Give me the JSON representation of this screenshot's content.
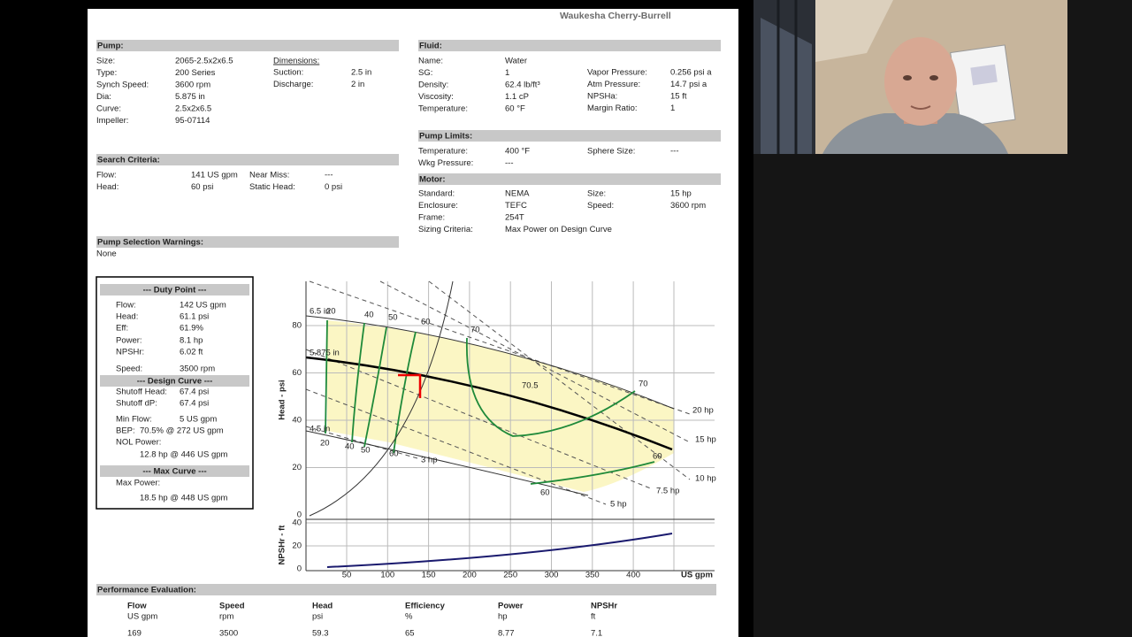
{
  "brand": "Waukesha Cherry-Burrell",
  "pump": {
    "title": "Pump:",
    "fields": [
      {
        "label": "Size:",
        "value": "2065-2.5x2x6.5"
      },
      {
        "label": "Type:",
        "value": "200 Series"
      },
      {
        "label": "Synch Speed:",
        "value": "3600 rpm"
      },
      {
        "label": "Dia:",
        "value": "5.875 in"
      },
      {
        "label": "Curve:",
        "value": "2.5x2x6.5"
      },
      {
        "label": "Impeller:",
        "value": "95-07114"
      }
    ],
    "dimensions": {
      "title": "Dimensions:",
      "fields": [
        {
          "label": "Suction:",
          "value": "2.5 in"
        },
        {
          "label": "Discharge:",
          "value": "2 in"
        }
      ]
    }
  },
  "search_criteria": {
    "title": "Search Criteria:",
    "fields": [
      {
        "label": "Flow:",
        "value": "141 US gpm"
      },
      {
        "label": "Head:",
        "value": "60 psi"
      }
    ],
    "fields_right": [
      {
        "label": "Near Miss:",
        "value": "---"
      },
      {
        "label": "Static Head:",
        "value": "0 psi"
      }
    ]
  },
  "warnings": {
    "title": "Pump Selection Warnings:",
    "text": "None"
  },
  "fluid": {
    "title": "Fluid:",
    "fields": [
      {
        "label": "Name:",
        "value": "Water"
      },
      {
        "label": "SG:",
        "value": "1"
      },
      {
        "label": "Density:",
        "value": "62.4 lb/ft³"
      },
      {
        "label": "Viscosity:",
        "value": "1.1 cP"
      },
      {
        "label": "Temperature:",
        "value": "60 °F"
      }
    ],
    "fields_right": [
      {
        "label": "Vapor Pressure:",
        "value": "0.256 psi a"
      },
      {
        "label": "Atm Pressure:",
        "value": "14.7 psi a"
      },
      {
        "label": "NPSHa:",
        "value": "15 ft"
      },
      {
        "label": "Margin Ratio:",
        "value": "1"
      }
    ]
  },
  "pump_limits": {
    "title": "Pump Limits:",
    "fields": [
      {
        "label": "Temperature:",
        "value": "400 °F"
      },
      {
        "label": "Wkg Pressure:",
        "value": "---"
      }
    ],
    "fields_right": [
      {
        "label": "Sphere Size:",
        "value": "---"
      }
    ]
  },
  "motor": {
    "title": "Motor:",
    "fields": [
      {
        "label": "Standard:",
        "value": "NEMA"
      },
      {
        "label": "Enclosure:",
        "value": "TEFC"
      },
      {
        "label": "Frame:",
        "value": "254T"
      },
      {
        "label": "Sizing Criteria:",
        "value": "Max Power on Design Curve"
      }
    ],
    "fields_right": [
      {
        "label": "Size:",
        "value": "15 hp"
      },
      {
        "label": "Speed:",
        "value": "3600 rpm"
      }
    ]
  },
  "duty_box": {
    "duty_point": {
      "title": "--- Duty Point ---",
      "fields": [
        {
          "label": "Flow:",
          "value": "142 US gpm"
        },
        {
          "label": "Head:",
          "value": "61.1 psi"
        },
        {
          "label": "Eff:",
          "value": "61.9%"
        },
        {
          "label": "Power:",
          "value": "8.1 hp"
        },
        {
          "label": "NPSHr:",
          "value": "6.02 ft"
        },
        {
          "label": "Speed:",
          "value": "3500 rpm"
        }
      ]
    },
    "design_curve": {
      "title": "--- Design Curve ---",
      "fields": [
        {
          "label": "Shutoff Head:",
          "value": "67.4 psi"
        },
        {
          "label": "Shutoff dP:",
          "value": "67.4 psi"
        },
        {
          "label": "Min Flow:",
          "value": "5 US gpm"
        },
        {
          "label": "BEP:",
          "value": "70.5% @ 272 US gpm"
        }
      ],
      "nol_label": "NOL Power:",
      "nol_value": "12.8 hp @ 446 US gpm"
    },
    "max_curve": {
      "title": "--- Max Curve ---",
      "label": "Max Power:",
      "value": "18.5 hp @ 448 US gpm"
    }
  },
  "chart": {
    "head_axis_label": "Head - psi",
    "npsh_axis_label": "NPSHr - ft",
    "flow_axis_label": "US gpm",
    "head_ticks": [
      "0",
      "20",
      "40",
      "60",
      "80"
    ],
    "npsh_ticks": [
      "0",
      "20",
      "40"
    ],
    "flow_ticks": [
      "50",
      "100",
      "150",
      "200",
      "250",
      "300",
      "350",
      "400"
    ],
    "diameter_labels": [
      "6.5 in",
      "5.875 in",
      "4.5 in"
    ],
    "efficiency_labels": [
      "20",
      "40",
      "50",
      "60",
      "70",
      "70.5",
      "70",
      "20",
      "40",
      "50",
      "60",
      "60",
      "60"
    ],
    "power_labels": [
      "20 hp",
      "15 hp",
      "10 hp",
      "7.5 hp",
      "5 hp",
      "3 hp"
    ]
  },
  "performance": {
    "title": "Performance Evaluation:",
    "headers": [
      "Flow",
      "Speed",
      "Head",
      "Efficiency",
      "Power",
      "NPSHr"
    ],
    "units": [
      "US gpm",
      "rpm",
      "psi",
      "%",
      "hp",
      "ft"
    ],
    "rows": [
      [
        "169",
        "3500",
        "59.3",
        "65",
        "8.77",
        "7.1"
      ]
    ]
  }
}
